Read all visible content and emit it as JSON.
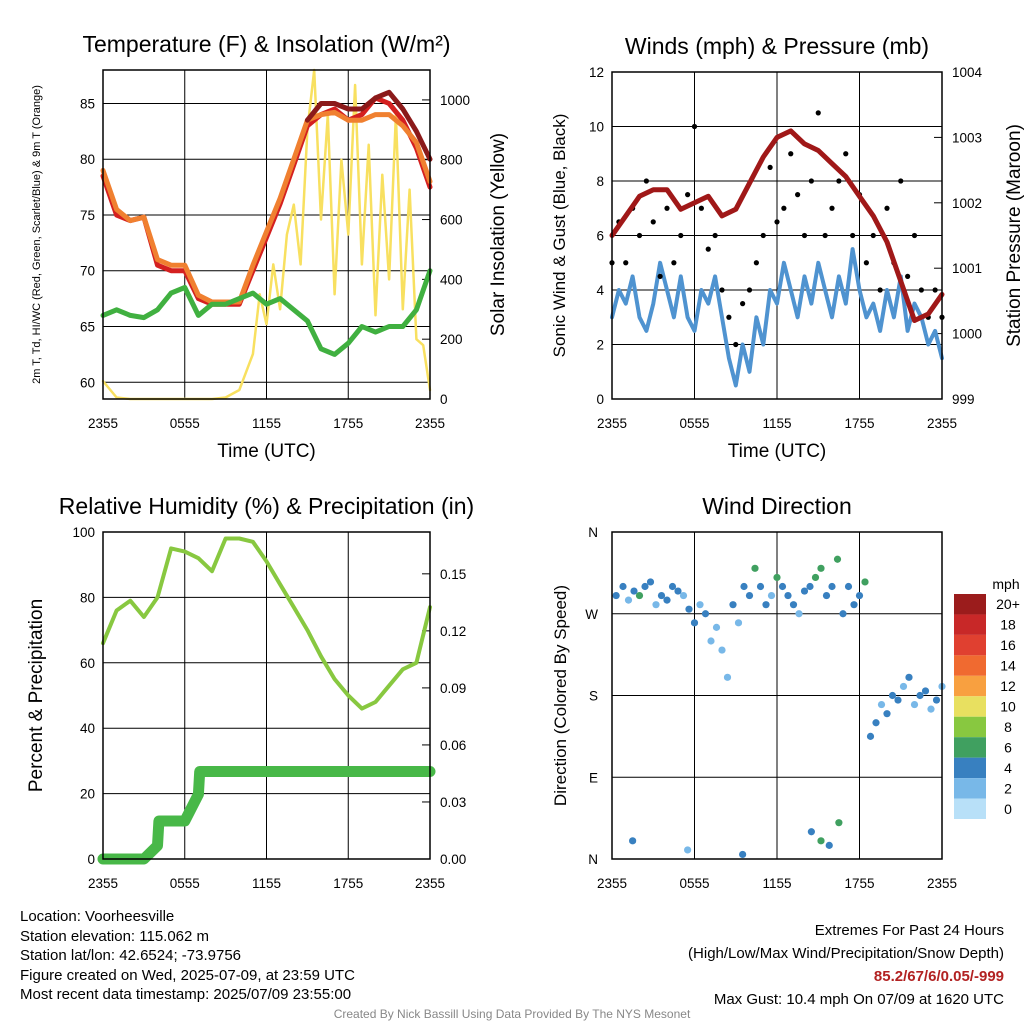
{
  "chart_data": [
    {
      "type": "line",
      "title": "Temperature (F) & Insolation (W/m²)",
      "xlabel": "Time (UTC)",
      "ylabel_left": "2m T, Td, HI/WC (Red, Green, Scarlet/Blue) & 9m T (Orange)",
      "ylabel_right": "Solar Insolation (Yellow)",
      "x_ticks": [
        "2355",
        "0555",
        "1155",
        "1755",
        "2355"
      ],
      "ylim": [
        58.5,
        88
      ],
      "yticks": [
        60,
        65,
        70,
        75,
        80,
        85
      ],
      "y2lim": [
        0,
        1100
      ],
      "y2ticks": [
        0,
        200,
        400,
        600,
        800,
        1000
      ],
      "grid": true,
      "series": [
        {
          "name": "2m T",
          "color": "#d42020",
          "x": [
            0,
            1,
            2,
            3,
            4,
            5,
            6,
            7,
            8,
            9,
            10,
            11,
            12,
            13,
            14,
            15,
            16,
            17,
            18,
            19,
            20,
            21,
            22,
            23,
            24
          ],
          "values": [
            78.5,
            75,
            74.5,
            74.8,
            70.5,
            70,
            70,
            67.5,
            67,
            67,
            67,
            70,
            73,
            76,
            79.5,
            83,
            84,
            84.5,
            83.5,
            84,
            85.5,
            85,
            83.5,
            81,
            77.5
          ]
        },
        {
          "name": "9m T",
          "color": "#f08030",
          "x": [
            0,
            1,
            2,
            3,
            4,
            5,
            6,
            7,
            8,
            9,
            10,
            11,
            12,
            13,
            14,
            15,
            16,
            17,
            18,
            19,
            20,
            21,
            22,
            23,
            24
          ],
          "values": [
            79,
            75.5,
            74.5,
            74.8,
            71,
            70.5,
            70.5,
            67.8,
            67.2,
            67.2,
            67.2,
            70.5,
            73.5,
            76.5,
            80,
            83.5,
            84,
            84.2,
            83.5,
            83.5,
            84,
            84,
            83,
            81.5,
            78
          ]
        },
        {
          "name": "HI/WC",
          "color": "#8b1a1a",
          "x": [
            15,
            16,
            17,
            18,
            19,
            20,
            21,
            22,
            23,
            24
          ],
          "values": [
            83.5,
            85,
            85,
            84.5,
            84.5,
            85.5,
            86,
            84.5,
            82.5,
            80
          ]
        },
        {
          "name": "Td",
          "color": "#40b040",
          "x": [
            0,
            1,
            2,
            3,
            4,
            5,
            6,
            7,
            8,
            9,
            10,
            11,
            12,
            13,
            14,
            15,
            16,
            17,
            18,
            19,
            20,
            21,
            22,
            23,
            24
          ],
          "values": [
            66,
            66.5,
            66,
            65.8,
            66.5,
            68,
            68.5,
            66,
            67,
            67,
            67.5,
            68,
            67,
            67.5,
            66.5,
            65.5,
            63,
            62.5,
            63.5,
            65,
            64.5,
            65,
            65,
            66.5,
            70
          ]
        },
        {
          "name": "Solar",
          "axis": "right",
          "color": "#f8e060",
          "x": [
            0,
            1,
            2,
            3,
            4,
            5,
            6,
            7,
            8,
            9,
            10,
            11,
            11.5,
            12,
            12.5,
            13,
            13.5,
            14,
            14.5,
            15,
            15.5,
            16,
            16.5,
            17,
            17.5,
            18,
            18.5,
            19,
            19.5,
            20,
            20.5,
            21,
            21.5,
            22,
            22.5,
            23,
            23.5,
            24
          ],
          "values": [
            60,
            5,
            0,
            0,
            0,
            0,
            0,
            0,
            0,
            5,
            30,
            150,
            350,
            250,
            450,
            300,
            550,
            650,
            450,
            900,
            1100,
            600,
            950,
            350,
            800,
            550,
            1050,
            450,
            850,
            280,
            750,
            400,
            950,
            300,
            700,
            200,
            180,
            30
          ]
        }
      ]
    },
    {
      "type": "line",
      "title": "Winds (mph) & Pressure (mb)",
      "xlabel": "Time (UTC)",
      "ylabel_left": "Sonic Wind & Gust (Blue, Black)",
      "ylabel_right": "Station Pressure (Maroon)",
      "x_ticks": [
        "2355",
        "0555",
        "1155",
        "1755",
        "2355"
      ],
      "ylim": [
        0,
        12
      ],
      "yticks": [
        0,
        2,
        4,
        6,
        8,
        10,
        12
      ],
      "y2lim": [
        999,
        1004
      ],
      "y2ticks": [
        999,
        1000,
        1001,
        1002,
        1003,
        1004
      ],
      "grid": true,
      "series": [
        {
          "name": "Sonic Wind",
          "color": "#4f93d0",
          "x": [
            0,
            0.5,
            1,
            1.5,
            2,
            2.5,
            3,
            3.5,
            4,
            4.5,
            5,
            5.5,
            6,
            6.5,
            7,
            7.5,
            8,
            8.5,
            9,
            9.5,
            10,
            10.5,
            11,
            11.5,
            12,
            12.5,
            13,
            13.5,
            14,
            14.5,
            15,
            15.5,
            16,
            16.5,
            17,
            17.5,
            18,
            18.5,
            19,
            19.5,
            20,
            20.5,
            21,
            21.5,
            22,
            22.5,
            23,
            23.5,
            24
          ],
          "values": [
            3,
            4,
            3.5,
            4.5,
            3,
            2.5,
            3.5,
            5,
            4,
            3,
            4.5,
            3,
            2.5,
            4,
            3.5,
            4.5,
            3,
            1.5,
            0.5,
            2,
            1,
            3,
            2,
            4,
            3.5,
            5,
            4,
            3,
            4.5,
            3.5,
            5,
            4,
            3,
            4.5,
            3.5,
            5.5,
            4,
            3,
            3.5,
            2.5,
            4,
            3,
            4.5,
            2.5,
            3.5,
            3,
            2,
            2.5,
            1.5
          ]
        },
        {
          "name": "Gust",
          "color": "#000000",
          "marker": "dot",
          "x": [
            0,
            0.5,
            1,
            1.5,
            2,
            2.5,
            3,
            3.5,
            4,
            4.5,
            5,
            5.5,
            6,
            6.5,
            7,
            7.5,
            8,
            8.5,
            9,
            9.5,
            10,
            10.5,
            11,
            11.5,
            12,
            12.5,
            13,
            13.5,
            14,
            14.5,
            15,
            15.5,
            16,
            16.5,
            17,
            17.5,
            18,
            18.5,
            19,
            19.5,
            20,
            20.5,
            21,
            21.5,
            22,
            22.5,
            23,
            23.5,
            24
          ],
          "values": [
            5,
            6.5,
            5,
            7,
            6,
            8,
            6.5,
            4.5,
            7,
            5,
            6,
            7.5,
            10,
            7,
            5.5,
            6,
            4,
            3,
            2,
            3.5,
            4,
            5,
            6,
            8.5,
            6.5,
            7,
            9,
            7.5,
            6,
            8,
            10.5,
            6,
            7,
            8,
            9,
            6,
            7.5,
            5,
            6,
            4,
            7,
            5,
            8,
            4.5,
            6,
            4,
            3,
            4,
            3
          ]
        },
        {
          "name": "Station Pressure",
          "axis": "right",
          "color": "#a01818",
          "x": [
            0,
            1,
            2,
            3,
            4,
            5,
            6,
            7,
            8,
            9,
            10,
            11,
            12,
            13,
            14,
            15,
            16,
            17,
            18,
            19,
            20,
            21,
            22,
            23,
            24
          ],
          "values": [
            1001.5,
            1001.8,
            1002.1,
            1002.2,
            1002.2,
            1001.9,
            1002,
            1002.1,
            1001.8,
            1001.9,
            1002.3,
            1002.7,
            1003,
            1003.1,
            1002.9,
            1002.8,
            1002.6,
            1002.4,
            1002.1,
            1001.8,
            1001.4,
            1000.8,
            1000.2,
            1000.3,
            1000.6
          ]
        }
      ]
    },
    {
      "type": "line",
      "title": "Relative Humidity (%) & Precipitation (in)",
      "xlabel": "",
      "ylabel_left": "Percent & Precipitation",
      "ylabel_right": "",
      "x_ticks": [
        "2355",
        "0555",
        "1155",
        "1755",
        "2355"
      ],
      "ylim": [
        0,
        100
      ],
      "yticks": [
        0,
        20,
        40,
        60,
        80,
        100
      ],
      "y2lim": [
        0,
        0.172
      ],
      "y2ticks": [
        "0.00",
        "0.03",
        "0.06",
        "0.09",
        "0.12",
        "0.15"
      ],
      "grid": true,
      "series": [
        {
          "name": "Relative Humidity",
          "color": "#88c840",
          "x": [
            0,
            1,
            2,
            3,
            4,
            5,
            6,
            7,
            8,
            9,
            10,
            11,
            12,
            13,
            14,
            15,
            16,
            17,
            18,
            19,
            20,
            21,
            22,
            23,
            24
          ],
          "values": [
            66,
            76,
            79,
            74,
            80,
            95,
            94,
            92,
            88,
            98,
            98,
            97,
            91,
            84,
            77,
            70,
            62,
            55,
            50,
            46,
            48,
            53,
            58,
            60,
            77
          ]
        },
        {
          "name": "Precipitation",
          "axis": "right",
          "color": "#48b848",
          "x": [
            0,
            1,
            2,
            3,
            4,
            4.1,
            5,
            6,
            7,
            7.1,
            8,
            9,
            10,
            12,
            14,
            16,
            18,
            20,
            22,
            24
          ],
          "values": [
            0,
            0,
            0,
            0,
            0.007,
            0.02,
            0.02,
            0.02,
            0.034,
            0.046,
            0.046,
            0.046,
            0.046,
            0.046,
            0.046,
            0.046,
            0.046,
            0.046,
            0.046,
            0.046
          ]
        }
      ]
    },
    {
      "type": "scatter",
      "title": "Wind Direction",
      "xlabel": "",
      "ylabel_left": "Direction (Colored By Speed)",
      "x_ticks": [
        "2355",
        "0555",
        "1155",
        "1755",
        "2355"
      ],
      "y_ticks": [
        "N",
        "E",
        "S",
        "W",
        "N"
      ],
      "ylim": [
        0,
        360
      ],
      "grid": true,
      "colorbar": {
        "unit": "mph",
        "labels": [
          "20+",
          "18",
          "16",
          "14",
          "12",
          "10",
          "8",
          "6",
          "4",
          "2",
          "0"
        ],
        "colors": [
          "#9b1c1c",
          "#c82828",
          "#e04030",
          "#f06a30",
          "#f8a040",
          "#e8e060",
          "#88c840",
          "#40a060",
          "#3880c0",
          "#78b8e8",
          "#b8e0f8"
        ]
      },
      "x": [
        0.3,
        0.8,
        1.2,
        1.6,
        2,
        2.4,
        2.8,
        3.2,
        3.6,
        4,
        4.4,
        4.8,
        5.2,
        5.6,
        6,
        6.4,
        6.8,
        7.2,
        7.6,
        8,
        8.4,
        8.8,
        9.2,
        9.6,
        10,
        10.4,
        10.8,
        11.2,
        11.6,
        12,
        12.4,
        12.8,
        13.2,
        13.6,
        14,
        14.4,
        14.8,
        15.2,
        15.6,
        16,
        16.4,
        16.8,
        17.2,
        17.6,
        18,
        18.4,
        18.8,
        19.2,
        19.6,
        20,
        20.4,
        20.8,
        21.2,
        21.6,
        22,
        22.4,
        22.8,
        23.2,
        23.6,
        24,
        1.5,
        5.5,
        9.5,
        14.5,
        15.2,
        15.8,
        16.5
      ],
      "values": [
        290,
        300,
        285,
        295,
        290,
        300,
        305,
        280,
        290,
        285,
        300,
        295,
        290,
        275,
        260,
        280,
        270,
        240,
        255,
        230,
        200,
        280,
        260,
        300,
        290,
        320,
        300,
        280,
        290,
        310,
        300,
        290,
        280,
        270,
        295,
        300,
        310,
        320,
        290,
        300,
        330,
        270,
        300,
        280,
        290,
        305,
        135,
        150,
        170,
        160,
        180,
        175,
        190,
        200,
        170,
        180,
        185,
        165,
        175,
        190,
        20,
        10,
        5,
        30,
        20,
        15,
        40
      ],
      "speeds": [
        3,
        4,
        2,
        3,
        5,
        4,
        3,
        2,
        4,
        3,
        4,
        3,
        2,
        3,
        4,
        2,
        3,
        2,
        1,
        2,
        1,
        3,
        2,
        4,
        3,
        5,
        4,
        3,
        2,
        5,
        3,
        4,
        3,
        2,
        3,
        4,
        6,
        5,
        3,
        4,
        5,
        4,
        3,
        3,
        4,
        6,
        3,
        4,
        2,
        3,
        4,
        3,
        2,
        3,
        2,
        3,
        4,
        2,
        3,
        2,
        3,
        1,
        4,
        3,
        5,
        4,
        6
      ]
    }
  ],
  "info_left": {
    "location": "Location: Voorheesville",
    "elevation": "Station elevation: 115.062 m",
    "latlon": "Station lat/lon: 42.6524; -73.9756",
    "created": "Figure created on Wed, 2025-07-09, at 23:59 UTC",
    "recent": "Most recent data timestamp: 2025/07/09 23:55:00"
  },
  "info_right": {
    "heading": "Extremes For Past 24 Hours",
    "subheading": "(High/Low/Max Wind/Precipitation/Snow Depth)",
    "values": "85.2/67/6/0.05/-999",
    "gust": "Max Gust: 10.4 mph On 07/09 at 1620 UTC"
  },
  "credit": "Created By Nick Bassill Using Data Provided By The NYS Mesonet"
}
